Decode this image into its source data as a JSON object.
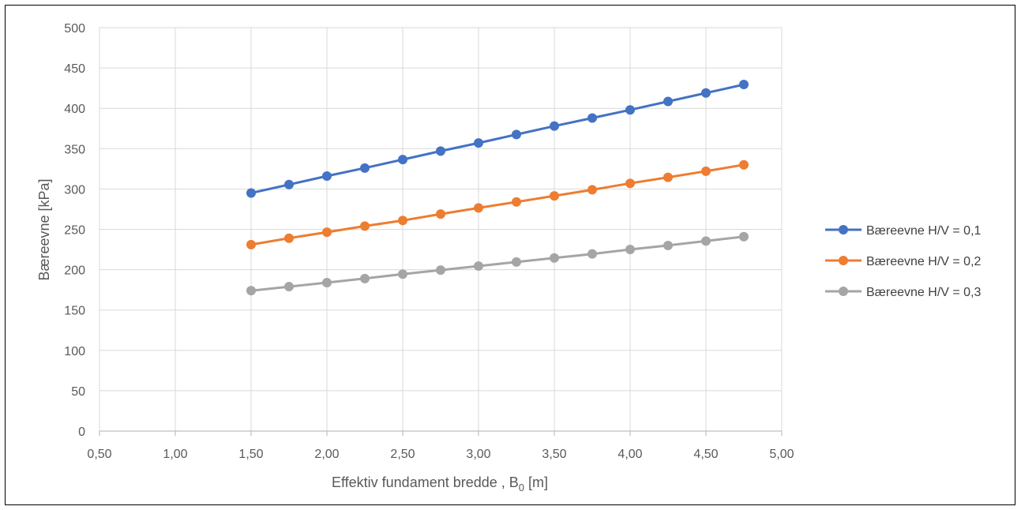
{
  "chart_data": {
    "type": "line",
    "title": "",
    "xlabel": "Effektiv fundament bredde , B",
    "xlabel_subscript": "0",
    "xlabel_suffix": " [m]",
    "ylabel": "Bæreevne [kPa]",
    "xlim": [
      0.5,
      5.0
    ],
    "ylim": [
      0,
      500
    ],
    "x_ticks": [
      "0,50",
      "1,00",
      "1,50",
      "2,00",
      "2,50",
      "3,00",
      "3,50",
      "4,00",
      "4,50",
      "5,00"
    ],
    "y_ticks": [
      "0",
      "50",
      "100",
      "150",
      "200",
      "250",
      "300",
      "350",
      "400",
      "450",
      "500"
    ],
    "grid": true,
    "legend_position": "right",
    "x": [
      1.5,
      1.75,
      2.0,
      2.25,
      2.5,
      2.75,
      3.0,
      3.25,
      3.5,
      3.75,
      4.0,
      4.25,
      4.5,
      4.75
    ],
    "series": [
      {
        "name": "Bæreevne H/V = 0,1",
        "color": "#4472C4",
        "values": [
          295,
          305.5,
          316,
          326,
          336.5,
          347,
          357,
          367.5,
          378,
          388,
          398,
          408.5,
          419,
          429.5
        ]
      },
      {
        "name": "Bæreevne H/V = 0,2",
        "color": "#ED7D31",
        "values": [
          231,
          239,
          246.5,
          254,
          261,
          269,
          276.5,
          284,
          291.5,
          299,
          307,
          314.5,
          322,
          330
        ]
      },
      {
        "name": "Bæreevne H/V = 0,3",
        "color": "#A5A5A5",
        "values": [
          174,
          179,
          184,
          189,
          194.5,
          199.5,
          204.5,
          209.5,
          214.5,
          219.5,
          225,
          230,
          235.5,
          241
        ]
      }
    ]
  }
}
